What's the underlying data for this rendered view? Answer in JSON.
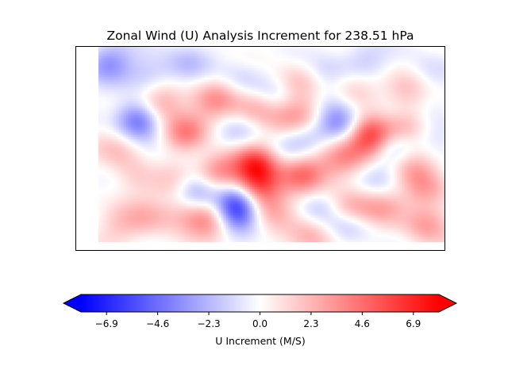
{
  "chart_data": {
    "type": "heatmap",
    "title": "Zonal Wind (U) Analysis Increment for 238.51 hPa",
    "colorbar": {
      "label": "U Increment (M/S)",
      "ticks": [
        "-6.9",
        "-4.6",
        "-2.3",
        "0.0",
        "2.3",
        "4.6",
        "6.9"
      ],
      "tick_values": [
        -6.9,
        -4.6,
        -2.3,
        0.0,
        2.3,
        4.6,
        6.9
      ],
      "range": [
        -8.05,
        8.05
      ],
      "colormap": "bwr",
      "extend": "both",
      "orientation": "horizontal"
    },
    "field_range": [
      0.06,
      1.0,
      0.0,
      1.0
    ],
    "features": [
      {
        "x": 0.09,
        "y": 0.92,
        "value": -3.2
      },
      {
        "x": 0.2,
        "y": 0.86,
        "value": -2.0
      },
      {
        "x": 0.23,
        "y": 0.72,
        "value": 3.5
      },
      {
        "x": 0.17,
        "y": 0.64,
        "value": -5.0
      },
      {
        "x": 0.3,
        "y": 0.58,
        "value": 3.8
      },
      {
        "x": 0.12,
        "y": 0.5,
        "value": 2.0
      },
      {
        "x": 0.35,
        "y": 0.47,
        "value": -1.6
      },
      {
        "x": 0.27,
        "y": 0.34,
        "value": 1.8
      },
      {
        "x": 0.2,
        "y": 0.4,
        "value": -1.2
      },
      {
        "x": 0.17,
        "y": 0.37,
        "value": 2.0
      },
      {
        "x": 0.33,
        "y": 0.3,
        "value": -1.5
      },
      {
        "x": 0.39,
        "y": 0.36,
        "value": 3.0
      },
      {
        "x": 0.37,
        "y": 0.42,
        "value": 2.5
      },
      {
        "x": 0.33,
        "y": 0.27,
        "value": -3.0
      },
      {
        "x": 0.44,
        "y": 0.27,
        "value": -4.0
      },
      {
        "x": 0.49,
        "y": 0.31,
        "value": 6.0
      },
      {
        "x": 0.49,
        "y": 0.43,
        "value": 5.5
      },
      {
        "x": 0.43,
        "y": 0.19,
        "value": -6.0
      },
      {
        "x": 0.37,
        "y": 0.16,
        "value": 4.5
      },
      {
        "x": 0.3,
        "y": 0.2,
        "value": 2.5
      },
      {
        "x": 0.2,
        "y": 0.16,
        "value": 2.0
      },
      {
        "x": 0.12,
        "y": 0.12,
        "value": 1.6
      },
      {
        "x": 0.53,
        "y": 0.2,
        "value": 2.5
      },
      {
        "x": 0.61,
        "y": 0.36,
        "value": 3.0
      },
      {
        "x": 0.56,
        "y": 0.48,
        "value": -1.5
      },
      {
        "x": 0.66,
        "y": 0.22,
        "value": -2.0
      },
      {
        "x": 0.74,
        "y": 0.2,
        "value": 3.5
      },
      {
        "x": 0.74,
        "y": 0.13,
        "value": -2.5
      },
      {
        "x": 0.83,
        "y": 0.22,
        "value": 2.5
      },
      {
        "x": 0.95,
        "y": 0.13,
        "value": 3.0
      },
      {
        "x": 0.64,
        "y": 0.06,
        "value": 2.5
      },
      {
        "x": 0.83,
        "y": 0.34,
        "value": -1.6
      },
      {
        "x": 0.91,
        "y": 0.42,
        "value": 2.5
      },
      {
        "x": 0.72,
        "y": 0.45,
        "value": 3.0
      },
      {
        "x": 0.8,
        "y": 0.53,
        "value": 2.5
      },
      {
        "x": 0.86,
        "y": 0.51,
        "value": -3.0
      },
      {
        "x": 0.8,
        "y": 0.58,
        "value": 5.0
      },
      {
        "x": 0.88,
        "y": 0.6,
        "value": 4.0
      },
      {
        "x": 0.62,
        "y": 0.56,
        "value": -2.0
      },
      {
        "x": 0.72,
        "y": 0.62,
        "value": -3.5
      },
      {
        "x": 0.85,
        "y": 0.64,
        "value": -2.8
      },
      {
        "x": 0.58,
        "y": 0.65,
        "value": 2.0
      },
      {
        "x": 0.63,
        "y": 0.67,
        "value": 2.5
      },
      {
        "x": 0.67,
        "y": 0.72,
        "value": -1.5
      },
      {
        "x": 0.45,
        "y": 0.59,
        "value": -1.5
      },
      {
        "x": 0.49,
        "y": 0.7,
        "value": 3.0
      },
      {
        "x": 0.3,
        "y": 0.92,
        "value": -1.8
      },
      {
        "x": 0.45,
        "y": 0.84,
        "value": -1.5
      },
      {
        "x": 0.6,
        "y": 0.83,
        "value": 2.0
      },
      {
        "x": 0.78,
        "y": 0.92,
        "value": -1.8
      },
      {
        "x": 0.95,
        "y": 0.87,
        "value": -1.2
      },
      {
        "x": 0.9,
        "y": 0.78,
        "value": 2.0
      },
      {
        "x": 0.76,
        "y": 0.8,
        "value": 2.2
      },
      {
        "x": 0.68,
        "y": 0.88,
        "value": -1.4
      },
      {
        "x": 0.38,
        "y": 0.74,
        "value": 3.0
      },
      {
        "x": 0.54,
        "y": 0.76,
        "value": -1.6
      },
      {
        "x": 0.95,
        "y": 0.3,
        "value": 2.5
      },
      {
        "x": 0.98,
        "y": 0.55,
        "value": -1.5
      },
      {
        "x": 0.62,
        "y": 0.4,
        "value": 2.0
      }
    ]
  }
}
